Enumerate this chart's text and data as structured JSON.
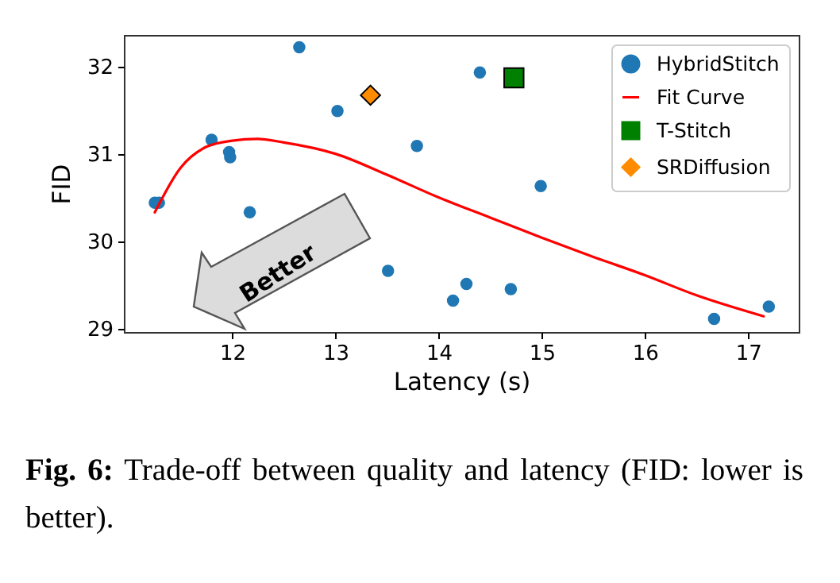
{
  "chart_data": {
    "type": "scatter",
    "xlabel": "Latency (s)",
    "ylabel": "FID",
    "xlim": [
      10.95,
      17.49
    ],
    "ylim": [
      28.96,
      32.36
    ],
    "xticks": [
      12,
      13,
      14,
      15,
      16,
      17
    ],
    "yticks": [
      29,
      30,
      31,
      32
    ],
    "legend": "top right",
    "series": [
      {
        "name": "HybridStitch",
        "marker": "circle",
        "color": "#1f77b4",
        "x": [
          11.25,
          11.29,
          11.8,
          11.97,
          11.98,
          12.17,
          12.65,
          13.02,
          13.79,
          13.51,
          14.14,
          14.27,
          14.4,
          14.7,
          14.99,
          16.67,
          17.2
        ],
        "values": [
          30.44,
          30.44,
          31.16,
          31.02,
          30.96,
          30.33,
          32.22,
          31.49,
          31.09,
          29.66,
          29.32,
          29.51,
          31.93,
          29.45,
          30.63,
          29.11,
          29.25
        ]
      },
      {
        "name": "Fit Curve",
        "type": "line",
        "color": "#ff0000",
        "x": [
          11.25,
          11.5,
          11.75,
          12.0,
          12.24,
          12.5,
          13.0,
          13.5,
          14.0,
          14.5,
          15.0,
          15.5,
          16.0,
          16.5,
          17.15
        ],
        "values": [
          30.33,
          30.84,
          31.08,
          31.15,
          31.17,
          31.13,
          31.0,
          30.76,
          30.5,
          30.27,
          30.04,
          29.82,
          29.61,
          29.38,
          29.14
        ]
      },
      {
        "name": "T-Stitch",
        "marker": "square",
        "color": "#008000",
        "x": [
          14.73
        ],
        "values": [
          31.87
        ]
      },
      {
        "name": "SRDiffusion",
        "marker": "diamond",
        "color": "#ff8c00",
        "x": [
          13.34
        ],
        "values": [
          31.67
        ]
      }
    ],
    "annotations": [
      "Better",
      "Fig. 6: Trade-off between quality and latency (FID: lower is better)."
    ]
  }
}
